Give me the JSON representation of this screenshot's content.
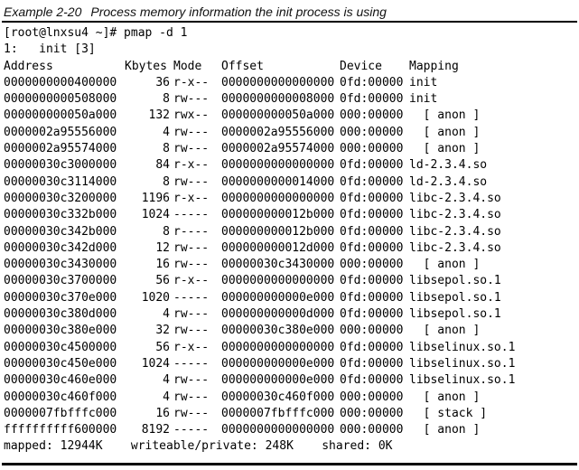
{
  "caption": {
    "number": "Example 2-20",
    "title": "Process memory information the init process is using"
  },
  "command": "[root@lnxsu4 ~]# pmap -d 1",
  "process_line": "1:   init [3]",
  "headers": {
    "address": "Address",
    "kbytes": "Kbytes",
    "mode": "Mode",
    "offset": "Offset",
    "device": "Device",
    "mapping": "Mapping"
  },
  "rows": [
    {
      "address": "0000000000400000",
      "kbytes": "36",
      "mode": "r-x--",
      "offset": "0000000000000000",
      "device": "0fd:00000",
      "mapping": "init"
    },
    {
      "address": "0000000000508000",
      "kbytes": "8",
      "mode": "rw---",
      "offset": "0000000000008000",
      "device": "0fd:00000",
      "mapping": "init"
    },
    {
      "address": "000000000050a000",
      "kbytes": "132",
      "mode": "rwx--",
      "offset": "000000000050a000",
      "device": "000:00000",
      "mapping": "  [ anon ]"
    },
    {
      "address": "0000002a95556000",
      "kbytes": "4",
      "mode": "rw---",
      "offset": "0000002a95556000",
      "device": "000:00000",
      "mapping": "  [ anon ]"
    },
    {
      "address": "0000002a95574000",
      "kbytes": "8",
      "mode": "rw---",
      "offset": "0000002a95574000",
      "device": "000:00000",
      "mapping": "  [ anon ]"
    },
    {
      "address": "00000030c3000000",
      "kbytes": "84",
      "mode": "r-x--",
      "offset": "0000000000000000",
      "device": "0fd:00000",
      "mapping": "ld-2.3.4.so"
    },
    {
      "address": "00000030c3114000",
      "kbytes": "8",
      "mode": "rw---",
      "offset": "0000000000014000",
      "device": "0fd:00000",
      "mapping": "ld-2.3.4.so"
    },
    {
      "address": "00000030c3200000",
      "kbytes": "1196",
      "mode": "r-x--",
      "offset": "0000000000000000",
      "device": "0fd:00000",
      "mapping": "libc-2.3.4.so"
    },
    {
      "address": "00000030c332b000",
      "kbytes": "1024",
      "mode": "-----",
      "offset": "000000000012b000",
      "device": "0fd:00000",
      "mapping": "libc-2.3.4.so"
    },
    {
      "address": "00000030c342b000",
      "kbytes": "8",
      "mode": "r----",
      "offset": "000000000012b000",
      "device": "0fd:00000",
      "mapping": "libc-2.3.4.so"
    },
    {
      "address": "00000030c342d000",
      "kbytes": "12",
      "mode": "rw---",
      "offset": "000000000012d000",
      "device": "0fd:00000",
      "mapping": "libc-2.3.4.so"
    },
    {
      "address": "00000030c3430000",
      "kbytes": "16",
      "mode": "rw---",
      "offset": "00000030c3430000",
      "device": "000:00000",
      "mapping": "  [ anon ]"
    },
    {
      "address": "00000030c3700000",
      "kbytes": "56",
      "mode": "r-x--",
      "offset": "0000000000000000",
      "device": "0fd:00000",
      "mapping": "libsepol.so.1"
    },
    {
      "address": "00000030c370e000",
      "kbytes": "1020",
      "mode": "-----",
      "offset": "000000000000e000",
      "device": "0fd:00000",
      "mapping": "libsepol.so.1"
    },
    {
      "address": "00000030c380d000",
      "kbytes": "4",
      "mode": "rw---",
      "offset": "000000000000d000",
      "device": "0fd:00000",
      "mapping": "libsepol.so.1"
    },
    {
      "address": "00000030c380e000",
      "kbytes": "32",
      "mode": "rw---",
      "offset": "00000030c380e000",
      "device": "000:00000",
      "mapping": "  [ anon ]"
    },
    {
      "address": "00000030c4500000",
      "kbytes": "56",
      "mode": "r-x--",
      "offset": "0000000000000000",
      "device": "0fd:00000",
      "mapping": "libselinux.so.1"
    },
    {
      "address": "00000030c450e000",
      "kbytes": "1024",
      "mode": "-----",
      "offset": "000000000000e000",
      "device": "0fd:00000",
      "mapping": "libselinux.so.1"
    },
    {
      "address": "00000030c460e000",
      "kbytes": "4",
      "mode": "rw---",
      "offset": "000000000000e000",
      "device": "0fd:00000",
      "mapping": "libselinux.so.1"
    },
    {
      "address": "00000030c460f000",
      "kbytes": "4",
      "mode": "rw---",
      "offset": "00000030c460f000",
      "device": "000:00000",
      "mapping": "  [ anon ]"
    },
    {
      "address": "0000007fbfffc000",
      "kbytes": "16",
      "mode": "rw---",
      "offset": "0000007fbfffc000",
      "device": "000:00000",
      "mapping": "  [ stack ]"
    },
    {
      "address": "ffffffffff600000",
      "kbytes": "8192",
      "mode": "-----",
      "offset": "0000000000000000",
      "device": "000:00000",
      "mapping": "  [ anon ]"
    }
  ],
  "summary": "mapped: 12944K    writeable/private: 248K    shared: 0K"
}
